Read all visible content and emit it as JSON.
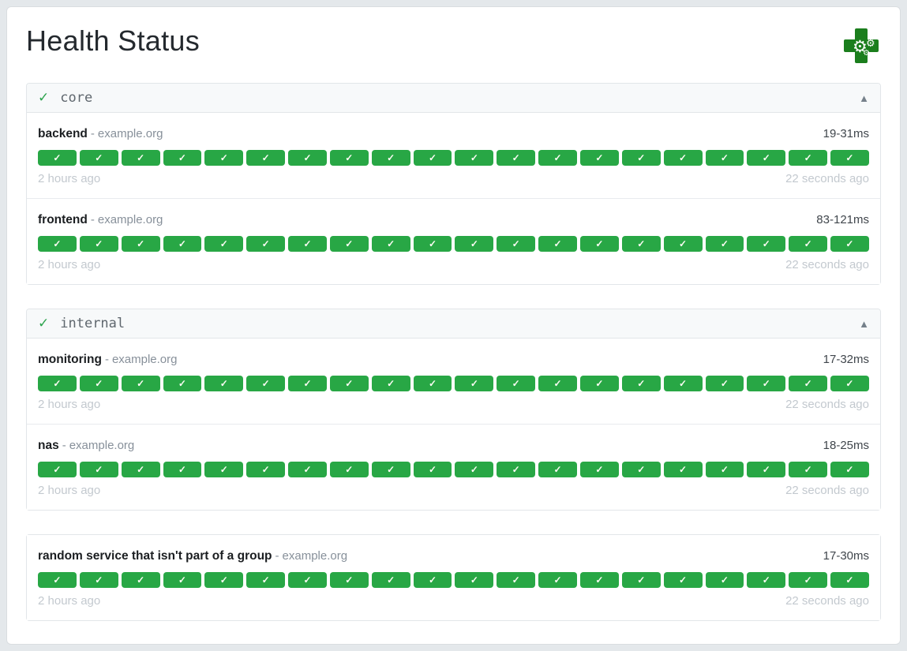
{
  "page": {
    "title": "Health Status"
  },
  "strings": {
    "separator": "-"
  },
  "icons": {
    "check": "✓",
    "group_ok": "✓",
    "collapse": "▲",
    "logo_gear": "⚙"
  },
  "colors": {
    "ok_green": "#28a745",
    "group_check_green": "#2da44e",
    "logo_green": "#1b7e1d",
    "page_background": "#e4e8eb"
  },
  "groups": [
    {
      "label": "core",
      "services": [
        {
          "name": "backend",
          "host": "example.org",
          "latency": "19-31ms",
          "oldest": "2 hours ago",
          "newest": "22 seconds ago",
          "history": [
            "ok",
            "ok",
            "ok",
            "ok",
            "ok",
            "ok",
            "ok",
            "ok",
            "ok",
            "ok",
            "ok",
            "ok",
            "ok",
            "ok",
            "ok",
            "ok",
            "ok",
            "ok",
            "ok",
            "ok"
          ]
        },
        {
          "name": "frontend",
          "host": "example.org",
          "latency": "83-121ms",
          "oldest": "2 hours ago",
          "newest": "22 seconds ago",
          "history": [
            "ok",
            "ok",
            "ok",
            "ok",
            "ok",
            "ok",
            "ok",
            "ok",
            "ok",
            "ok",
            "ok",
            "ok",
            "ok",
            "ok",
            "ok",
            "ok",
            "ok",
            "ok",
            "ok",
            "ok"
          ]
        }
      ]
    },
    {
      "label": "internal",
      "services": [
        {
          "name": "monitoring",
          "host": "example.org",
          "latency": "17-32ms",
          "oldest": "2 hours ago",
          "newest": "22 seconds ago",
          "history": [
            "ok",
            "ok",
            "ok",
            "ok",
            "ok",
            "ok",
            "ok",
            "ok",
            "ok",
            "ok",
            "ok",
            "ok",
            "ok",
            "ok",
            "ok",
            "ok",
            "ok",
            "ok",
            "ok",
            "ok"
          ]
        },
        {
          "name": "nas",
          "host": "example.org",
          "latency": "18-25ms",
          "oldest": "2 hours ago",
          "newest": "22 seconds ago",
          "history": [
            "ok",
            "ok",
            "ok",
            "ok",
            "ok",
            "ok",
            "ok",
            "ok",
            "ok",
            "ok",
            "ok",
            "ok",
            "ok",
            "ok",
            "ok",
            "ok",
            "ok",
            "ok",
            "ok",
            "ok"
          ]
        }
      ]
    },
    {
      "label": null,
      "services": [
        {
          "name": "random service that isn't part of a group",
          "host": "example.org",
          "latency": "17-30ms",
          "oldest": "2 hours ago",
          "newest": "22 seconds ago",
          "history": [
            "ok",
            "ok",
            "ok",
            "ok",
            "ok",
            "ok",
            "ok",
            "ok",
            "ok",
            "ok",
            "ok",
            "ok",
            "ok",
            "ok",
            "ok",
            "ok",
            "ok",
            "ok",
            "ok",
            "ok"
          ]
        }
      ]
    }
  ]
}
